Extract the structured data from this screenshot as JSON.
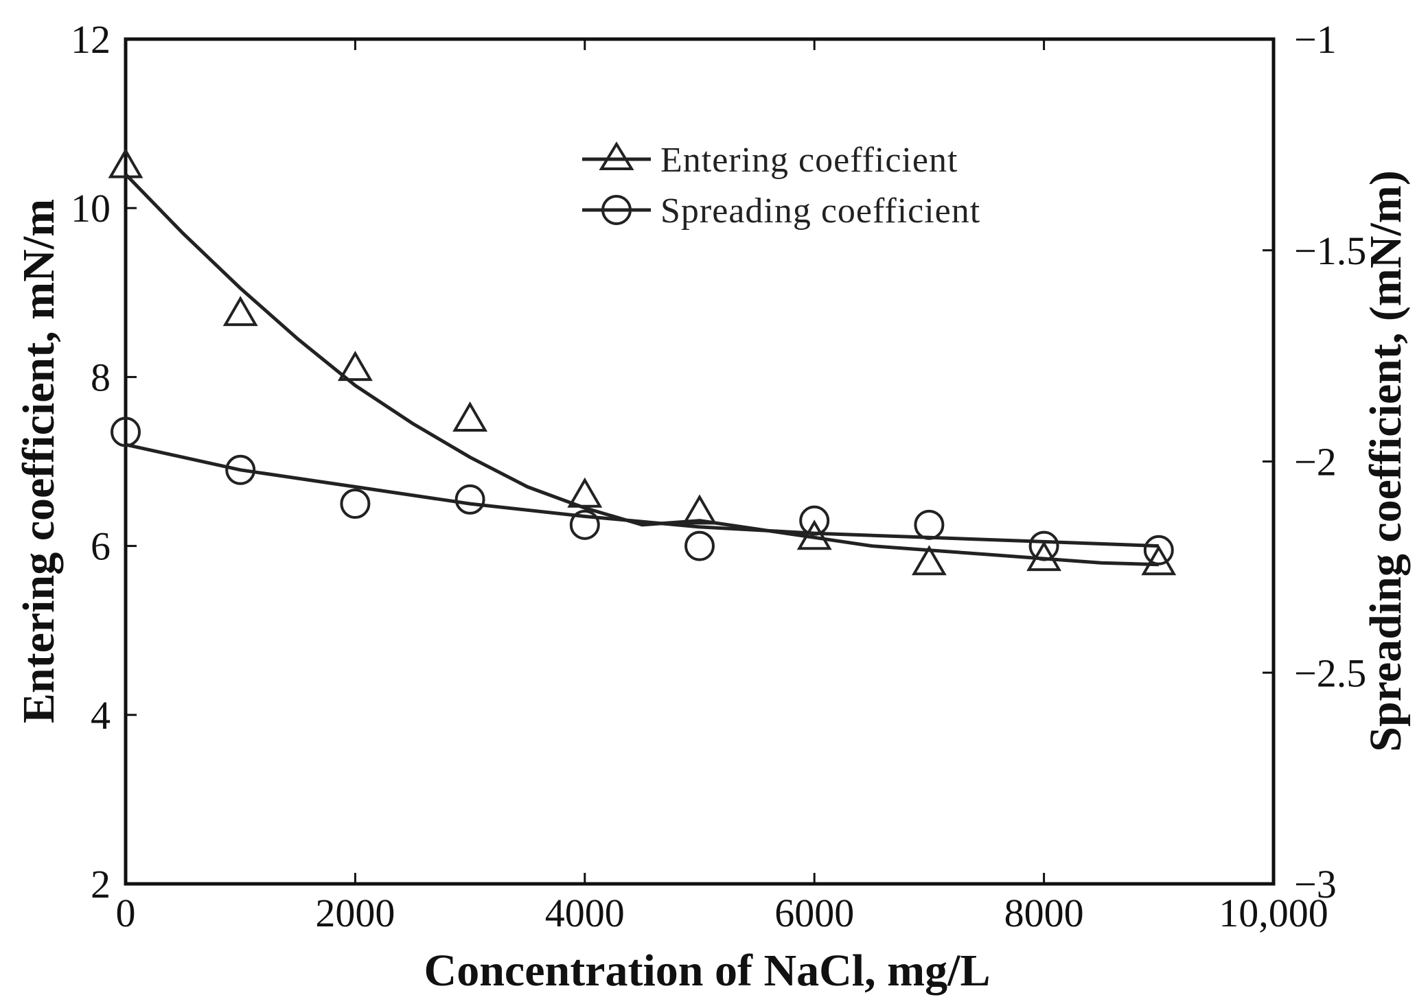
{
  "chart_data": {
    "type": "scatter",
    "xlabel": "Concentration of NaCl, mg/L",
    "ylabel_left": "Entering coefficient, mN/m",
    "ylabel_right": "Spreading coefficient, (mN/m)",
    "xlim": [
      0,
      10000
    ],
    "ylim_left": [
      2,
      12
    ],
    "ylim_right": [
      -3,
      -1
    ],
    "x_ticks": [
      0,
      2000,
      4000,
      6000,
      8000,
      10000
    ],
    "x_tick_labels": [
      "0",
      "2000",
      "4000",
      "6000",
      "8000",
      "10,000"
    ],
    "y_left_ticks": [
      2,
      4,
      6,
      8,
      10,
      12
    ],
    "y_left_tick_labels": [
      "2",
      "4",
      "6",
      "8",
      "10",
      "12"
    ],
    "y_right_ticks": [
      -1,
      -1.5,
      -2,
      -2.5,
      -3
    ],
    "y_right_tick_labels": [
      "−1",
      "−1.5",
      "−2",
      "−2.5",
      "−3"
    ],
    "series": [
      {
        "name": "Entering coefficient",
        "marker": "triangle",
        "axis": "left",
        "x": [
          0,
          1000,
          2000,
          3000,
          4000,
          5000,
          6000,
          7000,
          8000,
          9000
        ],
        "y": [
          10.5,
          8.75,
          8.1,
          7.5,
          6.6,
          6.4,
          6.1,
          5.8,
          5.85,
          5.8
        ],
        "fit_x": [
          0,
          500,
          1000,
          1500,
          2000,
          2500,
          3000,
          3500,
          4000,
          4500,
          5000,
          5500,
          6000,
          6500,
          7000,
          7500,
          8000,
          8500,
          9000
        ],
        "fit_y": [
          10.4,
          9.7,
          9.05,
          8.45,
          7.9,
          7.45,
          7.05,
          6.7,
          6.45,
          6.25,
          6.3,
          6.2,
          6.1,
          6.0,
          5.95,
          5.9,
          5.85,
          5.8,
          5.78
        ]
      },
      {
        "name": "Spreading coefficient",
        "marker": "circle",
        "axis": "right",
        "x": [
          0,
          1000,
          2000,
          3000,
          4000,
          5000,
          6000,
          7000,
          8000,
          9000
        ],
        "y": [
          -1.93,
          -2.02,
          -2.1,
          -2.09,
          -2.15,
          -2.2,
          -2.14,
          -2.15,
          -2.2,
          -2.21
        ],
        "fit_x": [
          0,
          1000,
          2000,
          3000,
          4000,
          5000,
          6000,
          7000,
          8000,
          9000
        ],
        "fit_y": [
          -1.96,
          -2.02,
          -2.06,
          -2.1,
          -2.13,
          -2.155,
          -2.17,
          -2.18,
          -2.19,
          -2.2
        ]
      }
    ],
    "legend": [
      "Entering coefficient",
      "Spreading coefficient"
    ],
    "legend_position": "top-right"
  }
}
